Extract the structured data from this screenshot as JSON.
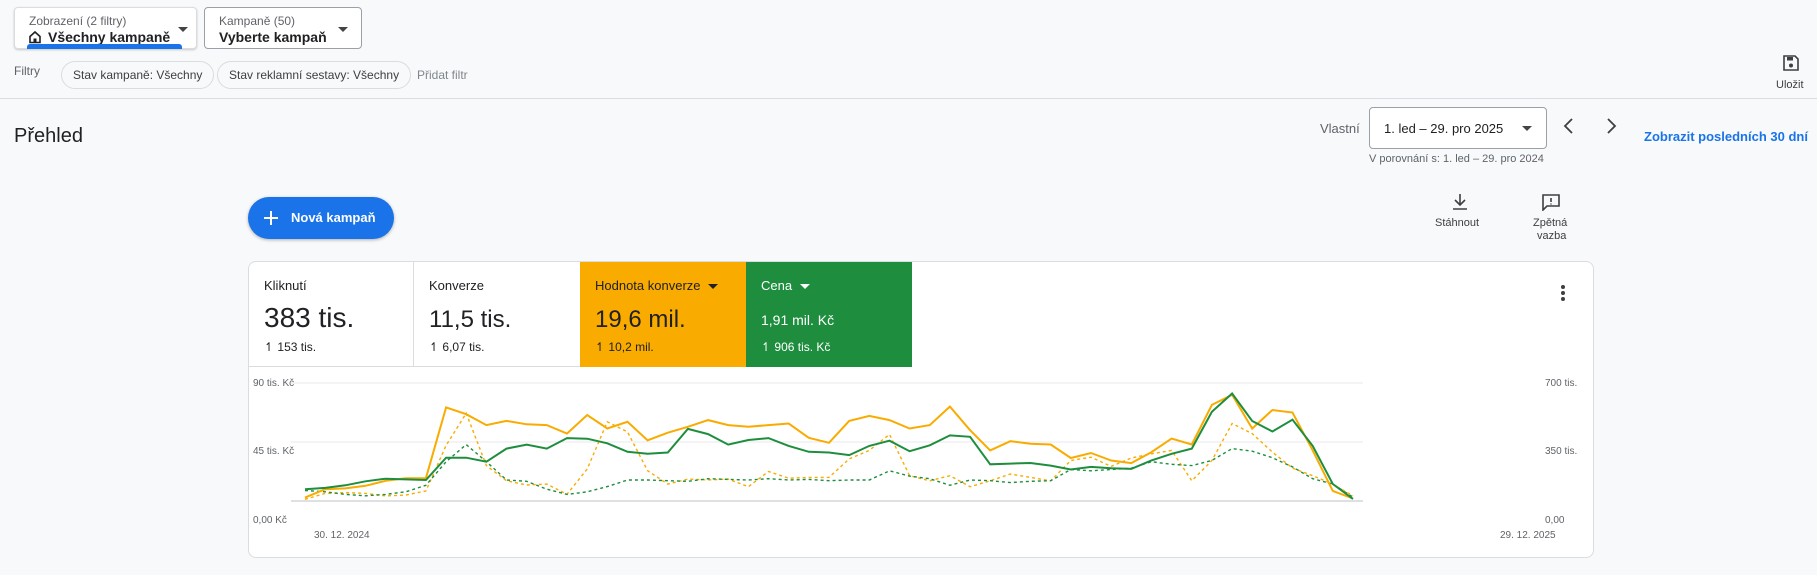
{
  "view_selector": {
    "label": "Zobrazení (2 filtry)",
    "value": "Všechny kampaně"
  },
  "campaign_selector": {
    "label": "Kampaně (50)",
    "value": "Vyberte kampaň"
  },
  "filters": {
    "label": "Filtry",
    "chips": [
      "Stav kampaně: Všechny",
      "Stav reklamní sestavy: Všechny"
    ],
    "add": "Přidat filtr"
  },
  "save": {
    "label": "Uložit",
    "icon": "save-icon"
  },
  "page": {
    "title": "Přehled"
  },
  "date": {
    "mode": "Vlastní",
    "range": "1. led – 29. pro 2025",
    "comparison": "V porovnání s: 1. led – 29. pro 2024",
    "last30": "Zobrazit posledních 30 dní"
  },
  "actions": {
    "new_campaign": "Nová kampaň",
    "download": "Stáhnout",
    "feedback_line1": "Zpětná",
    "feedback_line2": "vazba"
  },
  "metrics": [
    {
      "name": "Kliknutí",
      "value": "383 tis.",
      "change": "153 tis."
    },
    {
      "name": "Konverze",
      "value": "11,5 tis.",
      "change": "6,07 tis."
    },
    {
      "name": "Hodnota konverze",
      "value": "19,6 mil.",
      "change": "10,2 mil.",
      "color": "#f9ab00"
    },
    {
      "name": "Cena",
      "value": "1,91 mil. Kč",
      "change": "906 tis. Kč",
      "color": "#1e8e3e"
    }
  ],
  "chart_data": {
    "type": "line",
    "x_start_label": "30. 12. 2024",
    "x_end_label": "29. 12. 2025",
    "y_left_ticks": [
      "90 tis. Kč",
      "45 tis. Kč",
      "0,00 Kč"
    ],
    "y_right_ticks": [
      "700 tis.",
      "350 tis.",
      "0,00"
    ],
    "y_left_range": [
      0,
      90000
    ],
    "y_right_range": [
      0,
      700000
    ],
    "grid": true,
    "series": [
      {
        "metric": "Hodnota konverze",
        "color": "#f9ab00",
        "dashed": false,
        "axis": "right",
        "values": [
          20000,
          70000,
          75000,
          90000,
          120000,
          135000,
          135000,
          555000,
          515000,
          450000,
          475000,
          455000,
          450000,
          400000,
          510000,
          430000,
          470000,
          360000,
          405000,
          440000,
          480000,
          450000,
          440000,
          450000,
          460000,
          375000,
          345000,
          475000,
          505000,
          480000,
          430000,
          450000,
          560000,
          420000,
          300000,
          355000,
          340000,
          335000,
          255000,
          285000,
          240000,
          225000,
          290000,
          370000,
          335000,
          570000,
          630000,
          430000,
          540000,
          525000,
          300000,
          60000,
          15000
        ]
      },
      {
        "metric": "Cena",
        "color": "#1e8e3e",
        "dashed": false,
        "axis": "left",
        "values": [
          9000,
          10000,
          12000,
          15000,
          17000,
          16500,
          16000,
          33000,
          33000,
          30000,
          40000,
          43000,
          40000,
          48000,
          47500,
          44000,
          37500,
          36000,
          37000,
          55000,
          51000,
          43000,
          46500,
          48000,
          42000,
          37500,
          37000,
          35000,
          42000,
          46000,
          38000,
          42500,
          50000,
          49000,
          28000,
          28500,
          29000,
          27000,
          24000,
          26000,
          25000,
          24500,
          31000,
          36000,
          40000,
          68000,
          82000,
          61000,
          53000,
          62000,
          42000,
          13000,
          1500
        ]
      },
      {
        "metric": "Hodnota konverze",
        "color": "#f9ab00",
        "dashed": true,
        "axis": "right",
        "values": [
          10000,
          45000,
          50000,
          45000,
          30000,
          35000,
          60000,
          330000,
          520000,
          210000,
          120000,
          95000,
          100000,
          40000,
          190000,
          470000,
          410000,
          180000,
          100000,
          130000,
          125000,
          130000,
          85000,
          175000,
          135000,
          140000,
          140000,
          250000,
          300000,
          395000,
          150000,
          120000,
          150000,
          85000,
          120000,
          160000,
          140000,
          120000,
          240000,
          260000,
          205000,
          255000,
          280000,
          300000,
          120000,
          240000,
          460000,
          400000,
          290000,
          195000,
          150000,
          100000,
          30000
        ]
      },
      {
        "metric": "Cena",
        "color": "#1e8e3e",
        "dashed": true,
        "axis": "left",
        "values": [
          8000,
          7000,
          5000,
          4000,
          5000,
          7000,
          12000,
          30000,
          43000,
          30000,
          16000,
          15000,
          9000,
          5000,
          7000,
          11000,
          16000,
          16000,
          15500,
          15000,
          17000,
          16500,
          16000,
          17000,
          16000,
          16500,
          15500,
          16000,
          16000,
          23000,
          19000,
          17000,
          12000,
          16000,
          15500,
          14000,
          15000,
          15500,
          24000,
          23000,
          24000,
          25000,
          30000,
          28000,
          27000,
          31000,
          40000,
          38000,
          33000,
          26000,
          17000,
          13000,
          3000
        ]
      }
    ]
  }
}
